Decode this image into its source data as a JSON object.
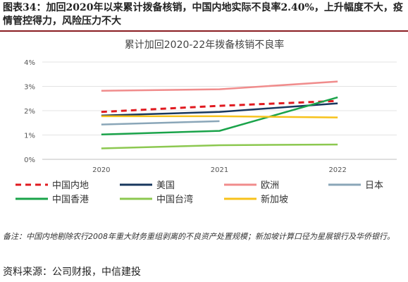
{
  "header": {
    "figure_title": "图表34：加回2020年以来累计拨备核销，中国内地实际不良率2.40%，上升幅度不大，疫情管控得力，风险压力不大"
  },
  "chart_data": {
    "type": "line",
    "title": "累计加回2020-22年拨备核销不良率",
    "xlabel": "",
    "ylabel": "",
    "categories": [
      "2020",
      "2021",
      "2022"
    ],
    "y_ticks": [
      "0%",
      "1%",
      "2%",
      "3%",
      "4%"
    ],
    "ylim": [
      0,
      4
    ],
    "grid": "horizontal",
    "legend_position": "bottom",
    "series": [
      {
        "name": "中国内地",
        "values": [
          1.95,
          2.2,
          2.4
        ],
        "color": "#e0191f",
        "dash": true
      },
      {
        "name": "美国",
        "values": [
          1.8,
          1.95,
          2.3
        ],
        "color": "#17375e",
        "dash": false
      },
      {
        "name": "欧洲",
        "values": [
          2.82,
          2.88,
          3.2
        ],
        "color": "#f08c8c",
        "dash": false
      },
      {
        "name": "日本",
        "values": [
          1.43,
          1.57,
          null
        ],
        "color": "#8aa6b8",
        "dash": false
      },
      {
        "name": "中国香港",
        "values": [
          1.02,
          1.17,
          2.55
        ],
        "color": "#1aa34a",
        "dash": false
      },
      {
        "name": "中国台湾",
        "values": [
          0.45,
          0.58,
          0.61
        ],
        "color": "#8cc850",
        "dash": false
      },
      {
        "name": "新加坡",
        "values": [
          1.77,
          1.77,
          1.72
        ],
        "color": "#f7c21b",
        "dash": false
      }
    ]
  },
  "footnote": "备注：中国内地剔除农行2008年重大财务重组剥离的不良资产处置规模；新加坡计算口径为星展银行及华侨银行。",
  "source": "资料来源：公司财报，中信建投"
}
